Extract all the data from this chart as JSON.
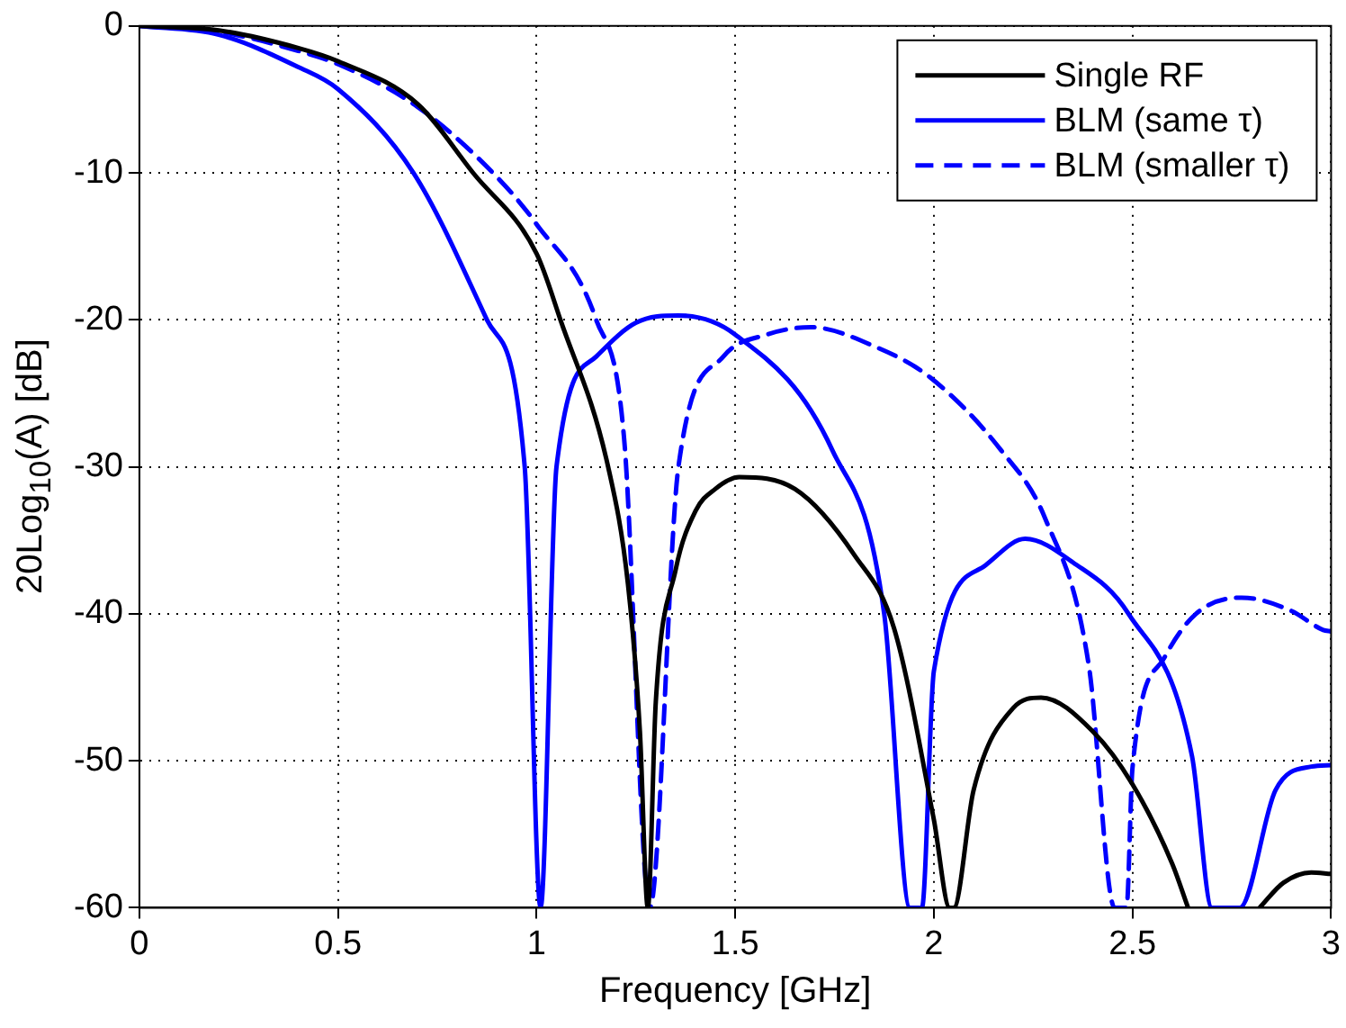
{
  "chart_data": {
    "type": "line",
    "xlabel": "Frequency [GHz]",
    "ylabel": "20Log$_{10}$(A) [dB]",
    "xlim": [
      0,
      3
    ],
    "xticks": [
      0,
      0.5,
      1,
      1.5,
      2,
      2.5,
      3
    ],
    "ylim": [
      -60,
      0
    ],
    "yticks": [
      -60,
      -50,
      -40,
      -30,
      -20,
      -10,
      0
    ],
    "grid": true,
    "legend": "top right",
    "marker": "none",
    "series": [
      {
        "name": "Single RF",
        "color": "#000000",
        "line_style": "solid",
        "x": [
          0,
          0.2,
          0.4,
          0.5,
          0.7,
          0.84,
          1.0,
          1.06,
          1.18,
          1.23,
          1.26,
          1.28,
          1.3,
          1.35,
          1.4,
          1.45,
          1.51,
          1.65,
          1.8,
          1.9,
          2.0,
          2.04,
          2.05,
          2.1,
          2.2,
          2.27,
          2.4,
          2.5,
          2.6,
          2.64,
          2.73,
          2.82,
          2.88,
          2.95,
          3.0
        ],
        "values": [
          0,
          -0.3,
          -1.5,
          -2.4,
          -5.3,
          -10,
          -15.5,
          -20,
          -30,
          -38,
          -48,
          -60,
          -46,
          -37,
          -33,
          -31.5,
          -30.7,
          -31.5,
          -36,
          -41,
          -54,
          -60,
          -60,
          -52,
          -46.4,
          -45.7,
          -48,
          -51.6,
          -57,
          -60,
          null,
          -60,
          -58.3,
          -57.6,
          -57.7
        ]
      },
      {
        "name": "BLM (same τ)",
        "color": "#0000ff",
        "line_style": "solid",
        "x": [
          0,
          0.2,
          0.4,
          0.5,
          0.69,
          0.875,
          0.97,
          1.01,
          1.05,
          1.15,
          1.25,
          1.357,
          1.5,
          1.745,
          1.875,
          1.94,
          1.97,
          2.0,
          2.13,
          2.23,
          2.35,
          2.49,
          2.65,
          2.7,
          2.77,
          2.86,
          2.95,
          3.0
        ],
        "values": [
          0,
          -0.6,
          -2.8,
          -4.3,
          -10,
          -20,
          -30,
          -60,
          -30,
          -22.5,
          -20.2,
          -19.7,
          -21,
          -28.9,
          -40,
          -60,
          -60,
          -43.9,
          -36.7,
          -34.9,
          -36.5,
          -40,
          -49.7,
          -60,
          -60,
          -52,
          -50.4,
          -50.3
        ]
      },
      {
        "name": "BLM (smaller τ)",
        "color": "#0000ff",
        "line_style": "dashed",
        "x": [
          0,
          0.2,
          0.4,
          0.5,
          0.7,
          0.89,
          1.0,
          1.15,
          1.22,
          1.285,
          1.357,
          1.47,
          1.58,
          1.69,
          1.85,
          1.99,
          2.17,
          2.28,
          2.39,
          2.455,
          2.485,
          2.5,
          2.58,
          2.66,
          2.775,
          2.9,
          2.98,
          3.0
        ],
        "values": [
          0,
          -0.4,
          -1.7,
          -2.6,
          -5.5,
          -10,
          -13.5,
          -20,
          -28,
          -60,
          -30,
          -22.5,
          -21,
          -20.5,
          -21.8,
          -23.9,
          -28.9,
          -33.5,
          -43.5,
          -60,
          -60,
          -50.5,
          -43,
          -40,
          -38.9,
          -39.8,
          -41.1,
          -41.2
        ]
      }
    ]
  }
}
